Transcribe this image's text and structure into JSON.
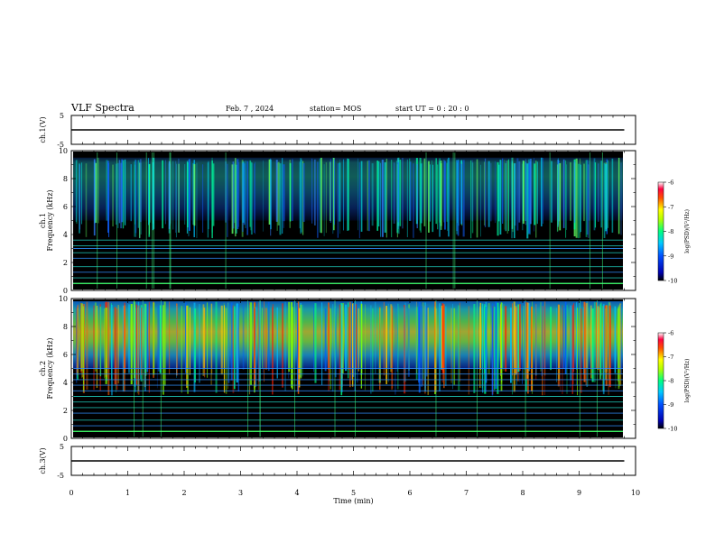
{
  "header": {
    "title": "VLF Spectra",
    "date": "Feb. 7 , 2024",
    "station": "station= MOS",
    "start": "start UT = 0 : 20 : 0"
  },
  "chart_data": [
    {
      "type": "line",
      "panel": "ch1-voltage",
      "ylabel": "ch.1(V)",
      "ylim": [
        -5,
        5
      ],
      "yticks": [
        "5",
        "-5"
      ],
      "xlim": [
        0,
        10
      ],
      "x": [
        0,
        9.8
      ],
      "y": [
        0.0,
        0.0
      ]
    },
    {
      "type": "heatmap",
      "panel": "ch1-spectrogram",
      "ylabel": "ch.1",
      "ylabel2": "Frequency (kHz)",
      "ylim": [
        0,
        10
      ],
      "yticks": [
        "0",
        "2",
        "4",
        "6",
        "8",
        "10"
      ],
      "xlim": [
        0,
        10
      ],
      "colorbar": {
        "label": "log(PSD)(V²/Hz)",
        "range": [
          -10,
          -6
        ],
        "ticks": [
          "-6",
          "-7",
          "-8",
          "-9",
          "-10"
        ]
      },
      "bands_khz": [
        0.5,
        0.9,
        1.3,
        1.7,
        2.3,
        2.7,
        3.0,
        3.2,
        3.6
      ],
      "emission_khz": [
        5.0,
        9.5
      ]
    },
    {
      "type": "heatmap",
      "panel": "ch2-spectrogram",
      "ylabel": "ch.2",
      "ylabel2": "Frequency (kHz)",
      "ylim": [
        0,
        10
      ],
      "yticks": [
        "0",
        "2",
        "4",
        "6",
        "8",
        "10"
      ],
      "xlim": [
        0,
        10
      ],
      "colorbar": {
        "label": "log(PSD)(V²/Hz)",
        "range": [
          -10,
          -6
        ],
        "ticks": [
          "-6",
          "-7",
          "-8",
          "-9",
          "-10"
        ]
      },
      "bands_khz": [
        0.5,
        0.9,
        1.3,
        1.8,
        2.2,
        2.6,
        3.0,
        3.4,
        3.8,
        4.2,
        4.6,
        5.0
      ],
      "emission_khz": [
        5.0,
        9.8
      ]
    },
    {
      "type": "line",
      "panel": "ch3-voltage",
      "ylabel": "ch.3(V)",
      "ylim": [
        -5,
        5
      ],
      "yticks": [
        "5",
        "-5"
      ],
      "xlim": [
        0,
        10
      ],
      "x": [
        0,
        9.8
      ],
      "y": [
        0.0,
        0.0
      ],
      "xlabel": "Time (min)",
      "xticks": [
        "0",
        "1",
        "2",
        "3",
        "4",
        "5",
        "6",
        "7",
        "8",
        "9",
        "10"
      ]
    }
  ]
}
